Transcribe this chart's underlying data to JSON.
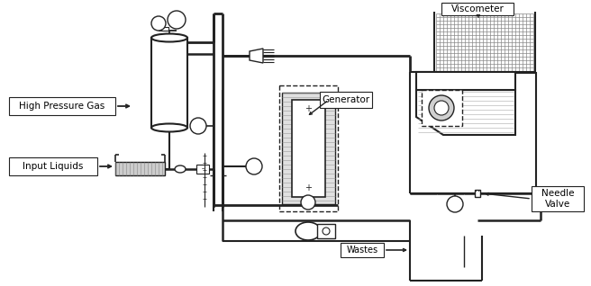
{
  "bg_color": "#ffffff",
  "lc": "#222222",
  "labels": {
    "high_pressure_gas": "High Pressure Gas",
    "input_liquids": "Input Liquids",
    "generator": "Generator",
    "viscometer": "Viscometer",
    "needle_valve": "Needle\nValve",
    "wastes": "Wastes"
  }
}
